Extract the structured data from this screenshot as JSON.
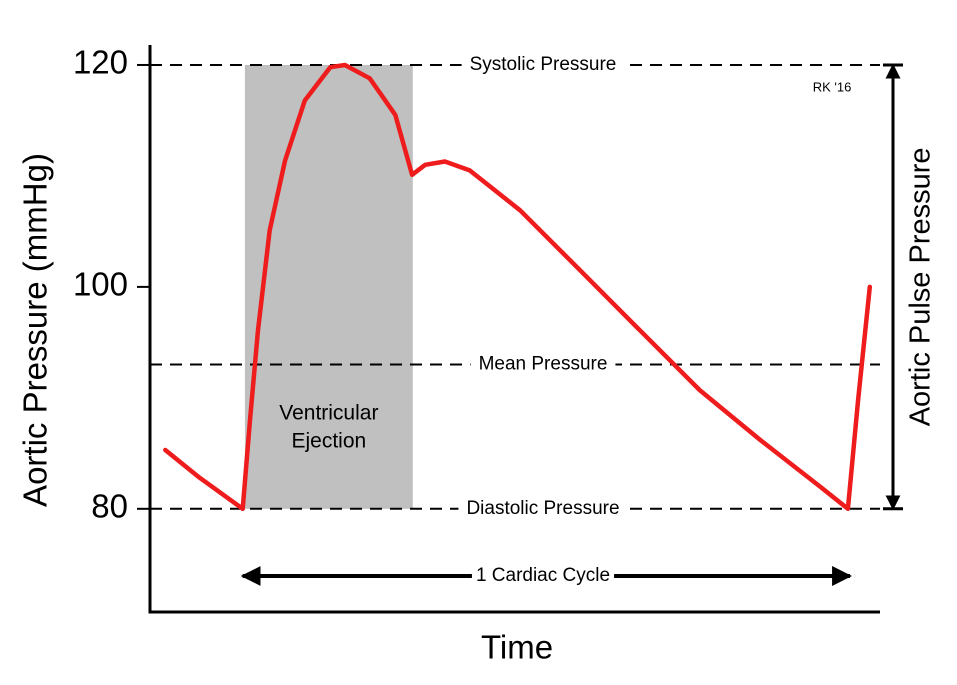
{
  "chart_data": {
    "type": "line",
    "y_label": "Aortic Pressure (mmHg)",
    "x_label": "Time",
    "ylim": [
      70.7,
      121.8
    ],
    "yticks": [
      80,
      100,
      120
    ],
    "xlim": [
      0,
      100
    ],
    "x": [
      2.1,
      6.8,
      12.7,
      13.7,
      14.8,
      16.4,
      18.5,
      21.2,
      24.7,
      26.7,
      30.1,
      33.6,
      35.9,
      37.7,
      40.4,
      43.8,
      50.7,
      58.9,
      67.1,
      75.3,
      83.6,
      91.8,
      95.6,
      97.0,
      98.6
    ],
    "values": [
      85.3,
      82.8,
      80,
      88.0,
      96.1,
      105.1,
      111.4,
      116.8,
      119.8,
      120,
      118.8,
      115.5,
      110.1,
      111.0,
      111.3,
      110.5,
      106.9,
      101.5,
      96.1,
      90.7,
      86.2,
      82.0,
      80,
      89.8,
      100
    ],
    "color": "#ee1c1c",
    "reference_lines": [
      {
        "label": "Systolic Pressure",
        "value": 120
      },
      {
        "label": "Mean Pressure",
        "value": 93
      },
      {
        "label": "Diastolic Pressure",
        "value": 80
      }
    ],
    "shaded_region": {
      "label": [
        "Ventricular",
        "Ejection"
      ],
      "x": [
        13.0,
        36.0
      ],
      "y": [
        80,
        120
      ],
      "color": "#c0c0c0"
    },
    "cycle": {
      "label": "1 Cardiac Cycle",
      "x": [
        12.7,
        95.9
      ]
    },
    "pulse_pressure": {
      "label": "Aortic Pulse Pressure"
    },
    "credit": "RK '16"
  }
}
